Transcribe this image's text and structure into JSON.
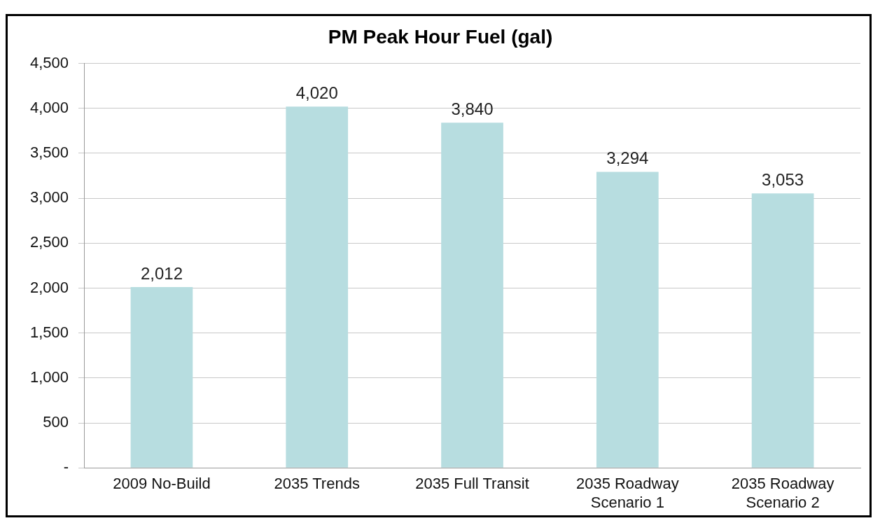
{
  "chart_data": {
    "type": "bar",
    "title": "PM Peak Hour Fuel (gal)",
    "categories": [
      "2009 No-Build",
      "2035 Trends",
      "2035 Full Transit",
      "2035 Roadway Scenario 1",
      "2035 Roadway Scenario 2"
    ],
    "values": [
      2012,
      4020,
      3840,
      3294,
      3053
    ],
    "color": "#b7dde0",
    "value_labels": [
      "2,012",
      "4,020",
      "3,840",
      "3,294",
      "3,053"
    ],
    "ylim": [
      0,
      4500
    ],
    "yticks": [
      {
        "value": 0,
        "label": "-"
      },
      {
        "value": 500,
        "label": "500"
      },
      {
        "value": 1000,
        "label": "1,000"
      },
      {
        "value": 1500,
        "label": "1,500"
      },
      {
        "value": 2000,
        "label": "2,000"
      },
      {
        "value": 2500,
        "label": "2,500"
      },
      {
        "value": 3000,
        "label": "3,000"
      },
      {
        "value": 3500,
        "label": "3,500"
      },
      {
        "value": 4000,
        "label": "4,000"
      },
      {
        "value": 4500,
        "label": "4,500"
      }
    ],
    "grid": "y"
  }
}
